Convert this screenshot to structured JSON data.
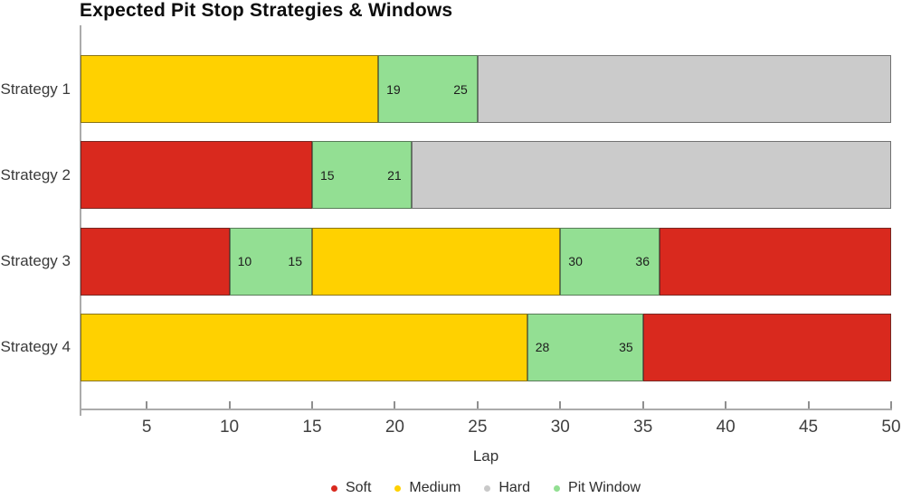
{
  "chart_data": {
    "type": "bar",
    "orientation": "horizontal",
    "title": "Expected Pit Stop Strategies & Windows",
    "xlabel": "Lap",
    "xlim": [
      1,
      50
    ],
    "xticks": [
      5,
      10,
      15,
      20,
      25,
      30,
      35,
      40,
      45,
      50
    ],
    "grid": false,
    "legend_position": "bottom-center",
    "categories": [
      "Strategy 1",
      "Strategy 2",
      "Strategy 3",
      "Strategy 4"
    ],
    "rows": [
      {
        "label": "Strategy 1",
        "segments": [
          {
            "type": "Medium",
            "start": 1,
            "end": 19
          },
          {
            "type": "Pit Window",
            "start": 19,
            "end": 25,
            "labels": [
              "19",
              "25"
            ]
          },
          {
            "type": "Hard",
            "start": 25,
            "end": 50
          }
        ]
      },
      {
        "label": "Strategy 2",
        "segments": [
          {
            "type": "Soft",
            "start": 1,
            "end": 15
          },
          {
            "type": "Pit Window",
            "start": 15,
            "end": 21,
            "labels": [
              "15",
              "21"
            ]
          },
          {
            "type": "Hard",
            "start": 21,
            "end": 50
          }
        ]
      },
      {
        "label": "Strategy 3",
        "segments": [
          {
            "type": "Soft",
            "start": 1,
            "end": 10
          },
          {
            "type": "Pit Window",
            "start": 10,
            "end": 15,
            "labels": [
              "10",
              "15"
            ]
          },
          {
            "type": "Medium",
            "start": 15,
            "end": 30
          },
          {
            "type": "Pit Window",
            "start": 30,
            "end": 36,
            "labels": [
              "30",
              "36"
            ]
          },
          {
            "type": "Soft",
            "start": 36,
            "end": 50
          }
        ]
      },
      {
        "label": "Strategy 4",
        "segments": [
          {
            "type": "Medium",
            "start": 1,
            "end": 28
          },
          {
            "type": "Pit Window",
            "start": 28,
            "end": 35,
            "labels": [
              "28",
              "35"
            ]
          },
          {
            "type": "Soft",
            "start": 35,
            "end": 50
          }
        ]
      }
    ],
    "legend": [
      {
        "label": "Soft",
        "color": "#d9291e"
      },
      {
        "label": "Medium",
        "color": "#ffd100"
      },
      {
        "label": "Hard",
        "color": "#c9c9c9"
      },
      {
        "label": "Pit Window",
        "color": "#92df92"
      }
    ]
  },
  "colors": {
    "Soft": "#d9291e",
    "Medium": "#ffd100",
    "Hard": "#cbcbcb",
    "Pit Window": "#93df93",
    "axis": "#ababab"
  }
}
